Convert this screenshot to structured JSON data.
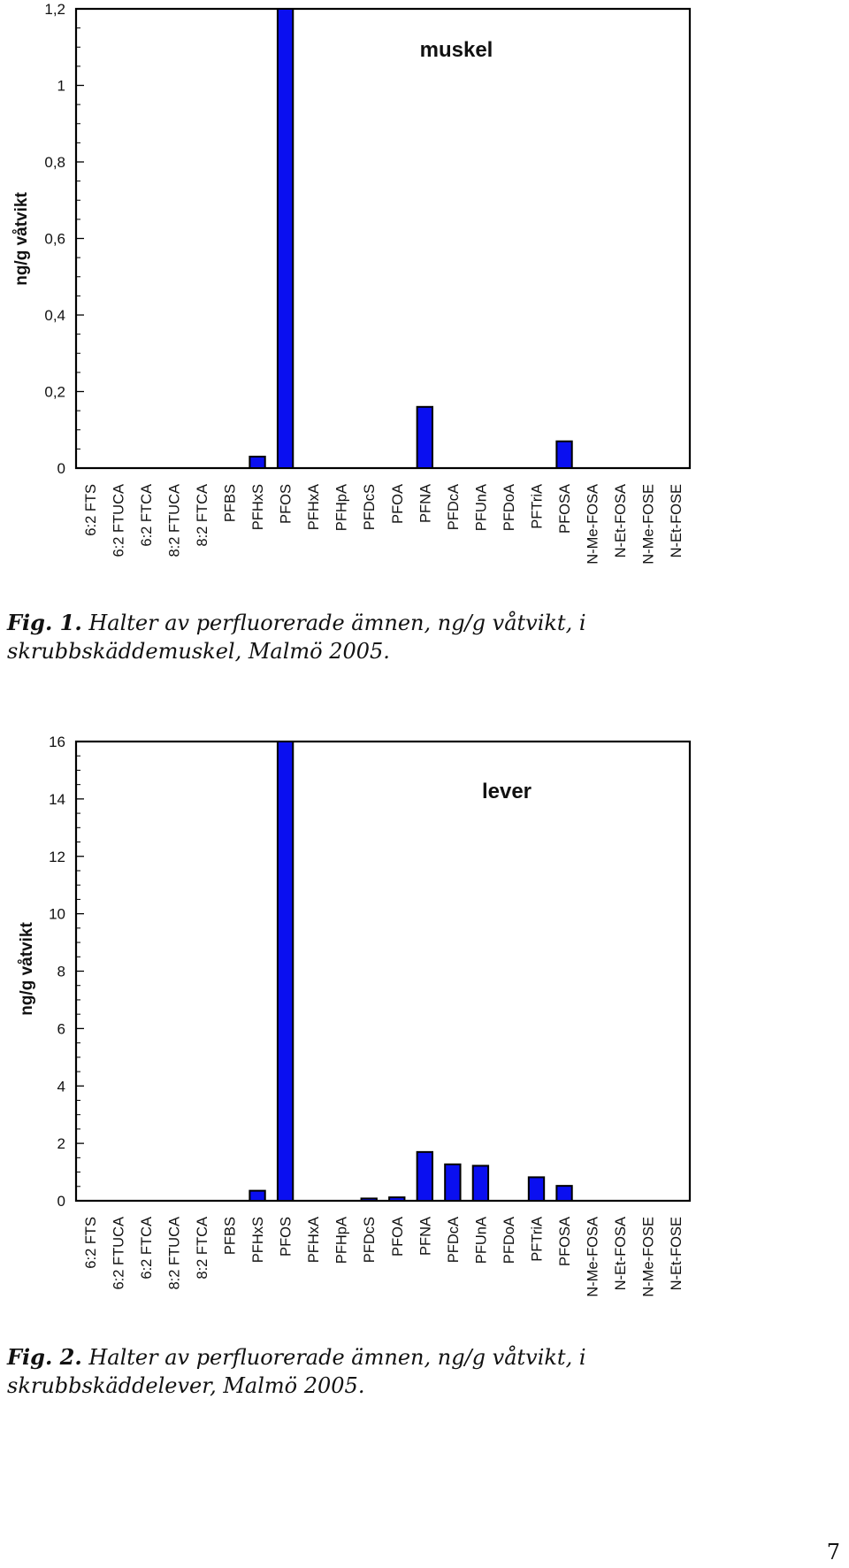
{
  "chart_data": [
    {
      "type": "bar",
      "title": "muskel",
      "ylabel": "ng/g våtvikt",
      "xlabel": "",
      "ylim": [
        0,
        1.2
      ],
      "yticks": [
        "0",
        "0,2",
        "0,4",
        "0,6",
        "0,8",
        "1",
        "1,2"
      ],
      "categories": [
        "6:2 FTS",
        "6:2 FTUCA",
        "6:2 FTCA",
        "8:2  FTUCA",
        "8:2 FTCA",
        "PFBS",
        "PFHxS",
        "PFOS",
        "PFHxA",
        "PFHpA",
        "PFDcS",
        "PFOA",
        "PFNA",
        "PFDcA",
        "PFUnA",
        "PFDoA",
        "PFTriA",
        "PFOSA",
        "N-Me-FOSA",
        "N-Et-FOSA",
        "N-Me-FOSE",
        "N-Et-FOSE"
      ],
      "values": [
        0,
        0,
        0,
        0,
        0,
        0,
        0.03,
        1.2,
        0,
        0,
        0,
        0,
        0.16,
        0,
        0,
        0,
        0,
        0.07,
        0,
        0,
        0,
        0
      ],
      "bar_color": "#0a0ff0",
      "grid": false,
      "legend": "none"
    },
    {
      "type": "bar",
      "title": "lever",
      "ylabel": "ng/g våtvikt",
      "xlabel": "",
      "ylim": [
        0,
        16
      ],
      "yticks": [
        "0",
        "2",
        "4",
        "6",
        "8",
        "10",
        "12",
        "14",
        "16"
      ],
      "categories": [
        "6:2 FTS",
        "6:2 FTUCA",
        "6:2 FTCA",
        "8:2  FTUCA",
        "8:2 FTCA",
        "PFBS",
        "PFHxS",
        "PFOS",
        "PFHxA",
        "PFHpA",
        "PFDcS",
        "PFOA",
        "PFNA",
        "PFDcA",
        "PFUnA",
        "PFDoA",
        "PFTriA",
        "PFOSA",
        "N-Me-FOSA",
        "N-Et-FOSA",
        "N-Me-FOSE",
        "N-Et-FOSE"
      ],
      "values": [
        0,
        0,
        0,
        0,
        0,
        0,
        0.35,
        16,
        0,
        0,
        0.08,
        0.12,
        1.7,
        1.27,
        1.22,
        0,
        0.82,
        0.52,
        0,
        0,
        0,
        0
      ],
      "bar_color": "#0a0ff0",
      "grid": false,
      "legend": "none"
    }
  ],
  "captions": [
    {
      "label": "Fig. 1.",
      "text": " Halter av perfluorerade ämnen, ng/g våtvikt, i skrubbskäddemuskel, Malmö 2005."
    },
    {
      "label": "Fig. 2.",
      "text": " Halter av perfluorerade ämnen, ng/g våtvikt, i skrubbskäddelever, Malmö 2005."
    }
  ],
  "page_number": "7"
}
